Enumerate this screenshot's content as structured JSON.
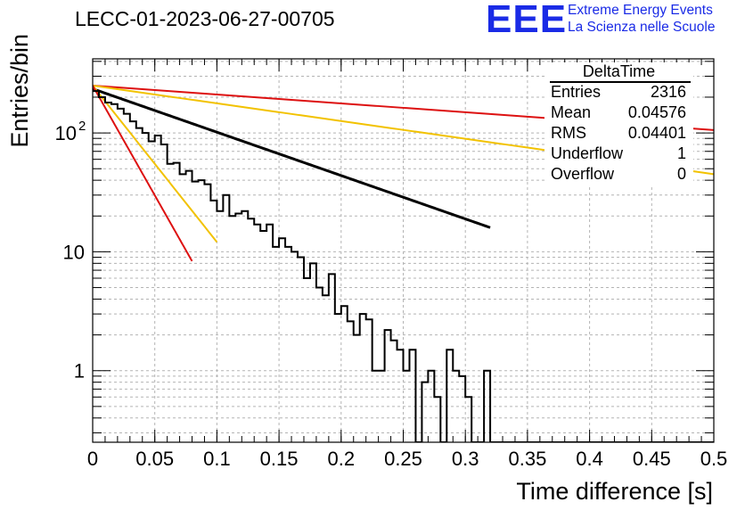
{
  "header": {
    "title": "LECC-01-2023-06-27-00705",
    "logo": {
      "mark": "EEE",
      "line1": "Extreme Energy Events",
      "line2": "La Scienza nelle Scuole"
    }
  },
  "stats_box": {
    "title": "DeltaTime",
    "rows": [
      {
        "label": "Entries",
        "value": "2316"
      },
      {
        "label": "Mean",
        "value": "0.04576"
      },
      {
        "label": "RMS",
        "value": "0.04401"
      },
      {
        "label": "Underflow",
        "value": "1"
      },
      {
        "label": "Overflow",
        "value": "0"
      }
    ]
  },
  "chart_data": {
    "type": "histogram",
    "xlabel": "Time difference [s]",
    "ylabel": "Entries/bin",
    "xlim": [
      0,
      0.5
    ],
    "ylim": [
      0.25,
      420
    ],
    "y_scale": "log",
    "grid": true,
    "x_ticks": [
      "0",
      "0.05",
      "0.1",
      "0.15",
      "0.2",
      "0.25",
      "0.3",
      "0.35",
      "0.4",
      "0.45",
      "0.5"
    ],
    "y_ticks": [
      {
        "value": 1,
        "label": "1"
      },
      {
        "value": 10,
        "label": "10"
      },
      {
        "value": 100,
        "label": "10",
        "exponent": "2"
      }
    ],
    "histogram": {
      "bin_width": 0.005,
      "color": "#000000",
      "counts": [
        225,
        200,
        180,
        175,
        160,
        145,
        125,
        110,
        100,
        85,
        95,
        80,
        55,
        56,
        45,
        48,
        39,
        40,
        37,
        27,
        22,
        30,
        20,
        21,
        22,
        19,
        17,
        15,
        17,
        11,
        13,
        11,
        10,
        9,
        6,
        8,
        5,
        4.3,
        6.5,
        3,
        3.5,
        2.6,
        2,
        3,
        2.7,
        1,
        1,
        2.2,
        1.8,
        1.5,
        1,
        1.5,
        0.1,
        0.8,
        1,
        0.6,
        0.1,
        1.5,
        1,
        0.9,
        0.6,
        0.1,
        0.1,
        1,
        0.1,
        0.1,
        0.1,
        0.1,
        0.1,
        0.1,
        0.1,
        0.1,
        0.1,
        0.1,
        0.1,
        0.1,
        0.1,
        0.1,
        0.1,
        0.1,
        0.1,
        0.1,
        0.1,
        0.1,
        0.1,
        0.1,
        0.1,
        0.1,
        0.1,
        0.1,
        0.1,
        0.1,
        0.1,
        0.1,
        0.1,
        0.1,
        0.1,
        0.1,
        0.1,
        0.1
      ]
    },
    "curves": [
      {
        "color": "#000000",
        "width": 3,
        "x_end": 0.32,
        "start": 235,
        "slope": -8.4
      },
      {
        "color": "#dd1111",
        "width": 2,
        "x_end": 0.5,
        "start": 250,
        "slope": -1.72
      },
      {
        "color": "#f2c200",
        "width": 2,
        "x_end": 0.5,
        "start": 250,
        "slope": -3.43
      },
      {
        "color": "#f2c200",
        "width": 2,
        "x_end": 0.1,
        "start": 250,
        "slope": -30.3
      },
      {
        "color": "#dd1111",
        "width": 2,
        "x_end": 0.08,
        "start": 250,
        "slope": -42.5
      }
    ]
  }
}
